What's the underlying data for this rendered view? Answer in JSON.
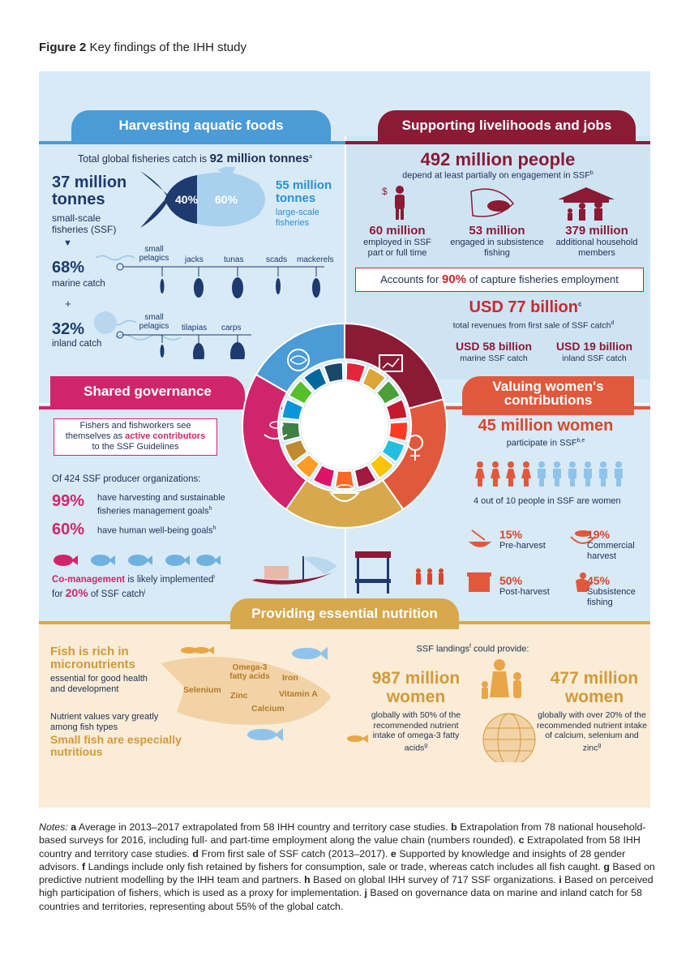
{
  "figure": {
    "label": "Figure 2",
    "title": "Key findings of the IHH study"
  },
  "harvest": {
    "heading": "Harvesting aquatic foods",
    "total": "Total global fisheries catch is",
    "total_value": "92 million tonnes",
    "total_sup": "a",
    "ssf_value": "37 million tonnes",
    "ssf_label": "small-scale fisheries (SSF)",
    "ssf_pct": "40%",
    "lsf_pct": "60%",
    "lsf_value": "55 million tonnes",
    "lsf_label": "large-scale fisheries",
    "marine_pct": "68%",
    "marine_label": "marine catch",
    "plus": "+",
    "inland_pct": "32%",
    "inland_label": "inland catch",
    "marine_species": [
      "small pelagics",
      "jacks",
      "tunas",
      "scads",
      "mackerels"
    ],
    "inland_species": [
      "small pelagics",
      "tilapias",
      "carps"
    ]
  },
  "livelihoods": {
    "heading": "Supporting livelihoods and jobs",
    "people": "492 million people",
    "people_desc": "depend at least partially on engagement in SSF",
    "people_sup": "b",
    "employed_value": "60 million",
    "employed_desc": "employed in SSF part or full time",
    "subsistence_value": "53 million",
    "subsistence_desc": "engaged in subsistence fishing",
    "household_value": "379 million",
    "household_desc": "additional household members",
    "accounts_pre": "Accounts for",
    "accounts_pct": "90%",
    "accounts_post": "of capture fisheries employment",
    "revenue": "USD 77 billion",
    "revenue_sup": "c",
    "revenue_desc": "total revenues from first sale of SSF catch",
    "revenue_desc_sup": "d",
    "marine_rev": "USD 58 billion",
    "marine_rev_desc": "marine SSF catch",
    "inland_rev": "USD 19 billion",
    "inland_rev_desc": "inland SSF catch"
  },
  "governance": {
    "heading": "Shared governance",
    "box_line1": "Fishers and fishworkers see",
    "box_line2_pre": "themselves as",
    "box_line2_hl": "active contributors",
    "box_line3": "to the SSF Guidelines",
    "orgs": "Of 424 SSF producer organizations:",
    "pct1": "99%",
    "pct1_desc": "have harvesting and sustainable fisheries management goals",
    "pct1_sup": "h",
    "pct2": "60%",
    "pct2_desc": "have human well-being goals",
    "pct2_sup": "h",
    "co_hl": "Co-management",
    "co_rest": "is likely implemented",
    "co_sup": "i",
    "co_line2_pre": "for",
    "co_pct": "20%",
    "co_line2_post": "of SSF catch",
    "co_sup2": "j"
  },
  "women": {
    "heading": "Valuing women's contributions",
    "value": "45 million women",
    "desc": "participate in SSF",
    "desc_sup": "b,e",
    "ratio": "4 out of 10 people in SSF are women",
    "women_icons": 4,
    "total_icons": 10,
    "pre_pct": "15%",
    "pre_label": "Pre-harvest",
    "com_pct": "19%",
    "com_label": "Commercial harvest",
    "post_pct": "50%",
    "post_label": "Post-harvest",
    "sub_pct": "45%",
    "sub_label": "Subsistence fishing"
  },
  "nutrition": {
    "heading": "Providing essential nutrition",
    "rich": "Fish is rich in micronutrients",
    "rich_desc": "essential for good health and development",
    "nutrients": [
      "Omega-3 fatty acids",
      "Iron",
      "Selenium",
      "Vitamin A",
      "Zinc",
      "Calcium"
    ],
    "vary": "Nutrient values vary greatly among fish types",
    "small": "Small fish are especially nutritious",
    "landings": "SSF landings",
    "landings_sup": "f",
    "landings_post": "could provide:",
    "left_value": "987 million women",
    "left_desc": "globally with 50% of the recommended nutrient intake of omega-3 fatty acids",
    "left_sup": "g",
    "right_value": "477 million women",
    "right_desc": "globally with over 20% of the recommended nutrient intake of calcium, selenium and zinc",
    "right_sup": "g"
  },
  "notes": {
    "label": "Notes:",
    "items": [
      {
        "k": "a",
        "t": "Average in 2013–2017 extrapolated from 58 IHH country and territory case studies."
      },
      {
        "k": "b",
        "t": "Extrapolation from 78 national household-based surveys for 2016, including full- and part-time employment along the value chain (numbers rounded)."
      },
      {
        "k": "c",
        "t": "Extrapolated from 58 IHH country and territory case studies."
      },
      {
        "k": "d",
        "t": "From first sale of SSF catch (2013–2017)."
      },
      {
        "k": "e",
        "t": "Supported by knowledge and insights of 28 gender advisors."
      },
      {
        "k": "f",
        "t": "Landings include only fish retained by fishers for consumption, sale or trade, whereas catch includes all fish caught."
      },
      {
        "k": "g",
        "t": "Based on predictive nutrient modelling by the IHH team and partners."
      },
      {
        "k": "h",
        "t": "Based on global IHH survey of 717 SSF organizations."
      },
      {
        "k": "i",
        "t": "Based on perceived high participation of fishers, which is used as a proxy for implementation."
      },
      {
        "k": "j",
        "t": "Based on governance data on marine and inland catch for 58 countries and territories, representing about 55% of the global catch."
      }
    ]
  },
  "colors": {
    "navy": "#1e3a6e",
    "blue": "#4a9bd6",
    "maroon": "#8b1a35",
    "red": "#e0593d",
    "pink": "#d1256b",
    "gold": "#d7a84c",
    "panel": "#d7eaf6",
    "cream": "#faecd6",
    "sdg": [
      "#e5243b",
      "#dda63a",
      "#4c9f38",
      "#c5192d",
      "#ff3a21",
      "#26bde2",
      "#fcc30b",
      "#a21942",
      "#fd6925",
      "#dd1367",
      "#fd9d24",
      "#bf8b2e",
      "#3f7e44",
      "#0a97d9",
      "#56c02b",
      "#00689d",
      "#19486a"
    ]
  }
}
